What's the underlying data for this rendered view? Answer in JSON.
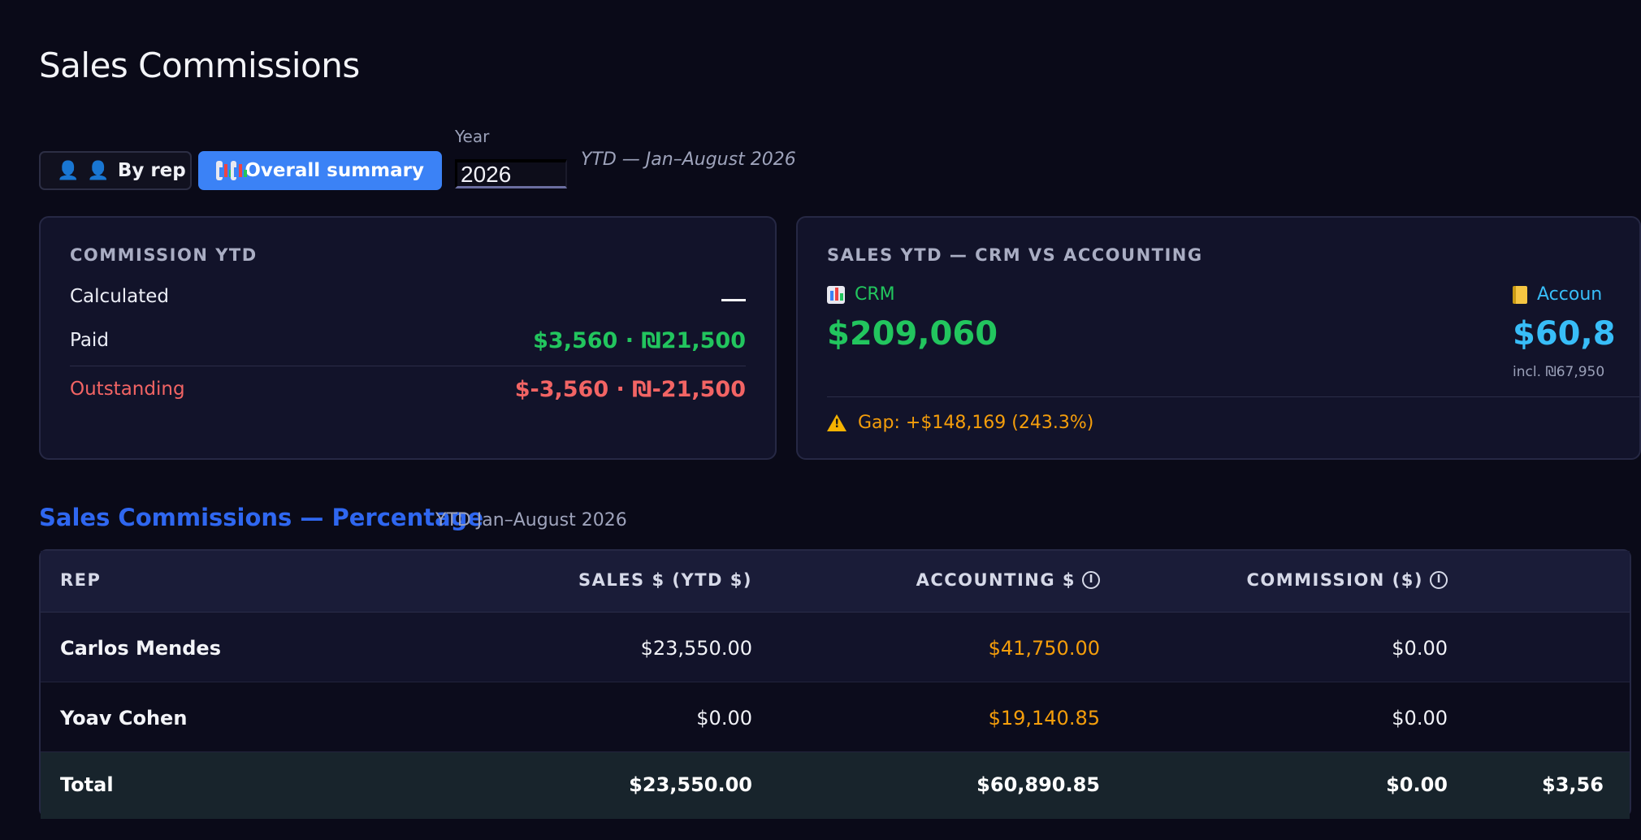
{
  "page": {
    "title": "Sales Commissions"
  },
  "toolbar": {
    "by_rep_label": "By rep",
    "overall_summary_label": "Overall summary",
    "year_label": "Year",
    "year_value": "2026",
    "ytd_note": "YTD — Jan–August 2026"
  },
  "commission_card": {
    "heading": "Commission YTD",
    "calculated_label": "Calculated",
    "paid_label": "Paid",
    "paid_value": "$3,560 · ₪21,500",
    "outstanding_label": "Outstanding",
    "outstanding_value": "$-3,560 · ₪-21,500"
  },
  "sales_card": {
    "heading": "Sales YTD — CRM vs Accounting",
    "crm_label": "CRM",
    "crm_value": "$209,060",
    "accounting_label": "Accoun",
    "accounting_value": "$60,8",
    "accounting_incl": "incl. ₪67,950",
    "gap_text": "Gap: +$148,169 (243.3%)"
  },
  "section": {
    "title": "Sales Commissions — Percentage",
    "subtitle": "YTD Jan–August 2026"
  },
  "table": {
    "headers": {
      "rep": "Rep",
      "sales": "Sales $ (YTD $)",
      "accounting": "Accounting $",
      "commission": "Commission ($)"
    },
    "rows": [
      {
        "rep": "Carlos Mendes",
        "sales": "$23,550.00",
        "accounting": "$41,750.00",
        "commission": "$0.00"
      },
      {
        "rep": "Yoav Cohen",
        "sales": "$0.00",
        "accounting": "$19,140.85",
        "commission": "$0.00"
      }
    ],
    "total": {
      "label": "Total",
      "sales": "$23,550.00",
      "accounting": "$60,890.85",
      "commission": "$0.00",
      "extra": "$3,56"
    }
  },
  "colors": {
    "background": "#0a0a18",
    "accent_blue": "#3b82f6",
    "green": "#22c55e",
    "red": "#f26464",
    "amber": "#f59e0b",
    "sky": "#38bdf8"
  },
  "icons": [
    "person-icon",
    "bar-chart-icon",
    "notebook-icon",
    "warning-icon",
    "info-icon"
  ]
}
